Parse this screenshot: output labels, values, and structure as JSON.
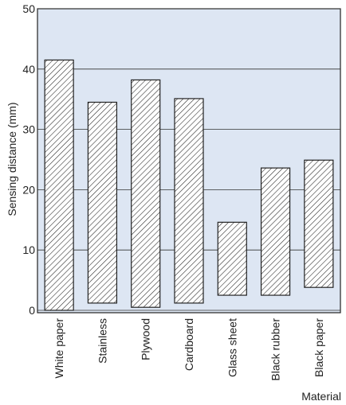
{
  "chart_data": {
    "type": "range-bar",
    "y_label": "Sensing distance (mm)",
    "x_label": "Material",
    "categories": [
      "White paper",
      "Stainless",
      "Plywood",
      "Cardboard",
      "Glass sheet",
      "Black rubber",
      "Black paper"
    ],
    "low": [
      0,
      1.2,
      0.5,
      1.2,
      2.5,
      2.5,
      3.8
    ],
    "high": [
      41.5,
      34.5,
      38.2,
      35.1,
      14.6,
      23.6,
      24.9
    ],
    "ylim": [
      0,
      50
    ],
    "yticks": [
      0,
      10,
      20,
      30,
      40,
      50
    ],
    "grid": true,
    "background": "#dde6f3",
    "color": "#222222"
  }
}
